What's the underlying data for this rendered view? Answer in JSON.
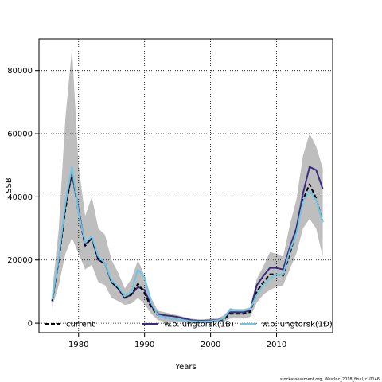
{
  "chart_data": {
    "type": "line",
    "xlabel": "Years",
    "ylabel": "SSB",
    "xlim": [
      1974,
      2018.5
    ],
    "ylim": [
      -3000,
      90000
    ],
    "x_ticks": [
      1980,
      1990,
      2000,
      2010
    ],
    "y_ticks": [
      0,
      20000,
      40000,
      60000,
      80000
    ],
    "x_tick_labels": [
      "1980",
      "1990",
      "2000",
      "2010"
    ],
    "y_tick_labels": [
      "0",
      "20000",
      "40000",
      "60000",
      "80000"
    ],
    "grid": true,
    "legend_position": "bottom",
    "x": [
      1976,
      1977,
      1978,
      1979,
      1980,
      1981,
      1982,
      1983,
      1984,
      1985,
      1986,
      1987,
      1988,
      1989,
      1990,
      1991,
      1992,
      1993,
      1994,
      1995,
      1996,
      1997,
      1998,
      1999,
      2000,
      2001,
      2002,
      2003,
      2004,
      2005,
      2006,
      2007,
      2008,
      2009,
      2010,
      2011,
      2012,
      2013,
      2014,
      2015,
      2016,
      2017
    ],
    "band": {
      "color": "#bebebe",
      "lower": [
        5000,
        12000,
        22000,
        27000,
        22000,
        17000,
        18500,
        13000,
        12000,
        8000,
        7000,
        5800,
        6200,
        8000,
        6000,
        3000,
        1000,
        500,
        400,
        300,
        200,
        100,
        100,
        100,
        200,
        200,
        500,
        1500,
        1500,
        1500,
        2000,
        6500,
        9000,
        10500,
        11500,
        12000,
        17000,
        22000,
        30000,
        33000,
        30000,
        21000
      ],
      "upper": [
        10000,
        30000,
        65000,
        87000,
        50000,
        34000,
        40000,
        30000,
        28000,
        20000,
        16000,
        11000,
        14000,
        20000,
        15000,
        8000,
        4000,
        3500,
        3000,
        2500,
        2000,
        1500,
        1200,
        1200,
        1500,
        1500,
        2500,
        4500,
        4500,
        4500,
        5000,
        14000,
        18000,
        22500,
        22000,
        21000,
        31000,
        39000,
        53000,
        60000,
        56000,
        49000
      ]
    },
    "series": [
      {
        "name": "current",
        "color": "#000000",
        "dash": "5,3",
        "width": 2,
        "values": [
          7000,
          20000,
          36000,
          48000,
          35000,
          24500,
          27000,
          20000,
          19000,
          13000,
          11000,
          8000,
          9000,
          12500,
          9500,
          5000,
          2500,
          1800,
          1500,
          1200,
          1000,
          700,
          600,
          600,
          700,
          800,
          1200,
          3000,
          3000,
          3000,
          3500,
          10000,
          13000,
          15500,
          15500,
          15000,
          22000,
          29000,
          39000,
          44000,
          39500,
          32000
        ]
      },
      {
        "name": "w.o. ungtorsk(1B)",
        "color": "#3a2a80",
        "dash": "",
        "width": 2,
        "values": [
          7000,
          20500,
          37000,
          47500,
          36000,
          25000,
          27000,
          20000,
          19000,
          13000,
          11000,
          8000,
          9000,
          11500,
          10500,
          5500,
          3000,
          2500,
          2300,
          2000,
          1500,
          1000,
          800,
          800,
          900,
          1000,
          1500,
          3500,
          3500,
          3500,
          4000,
          12000,
          15000,
          17500,
          17500,
          17000,
          24000,
          30000,
          41000,
          49500,
          48500,
          42500
        ]
      },
      {
        "name": "w.o. ungtorsk(1D)",
        "color": "#6ec6e6",
        "dash": "",
        "width": 2,
        "values": [
          7500,
          21000,
          38000,
          49500,
          35000,
          25500,
          27500,
          21000,
          19000,
          13500,
          11500,
          8500,
          10000,
          17000,
          14500,
          6500,
          2500,
          1800,
          1500,
          1200,
          1000,
          700,
          600,
          600,
          700,
          900,
          1500,
          4500,
          4000,
          4000,
          4500,
          9000,
          12000,
          14000,
          15500,
          15500,
          23000,
          28500,
          38500,
          42000,
          39000,
          32000
        ]
      }
    ]
  },
  "credit": "stockassessment.org, Westlnc_2018_final, r10146"
}
